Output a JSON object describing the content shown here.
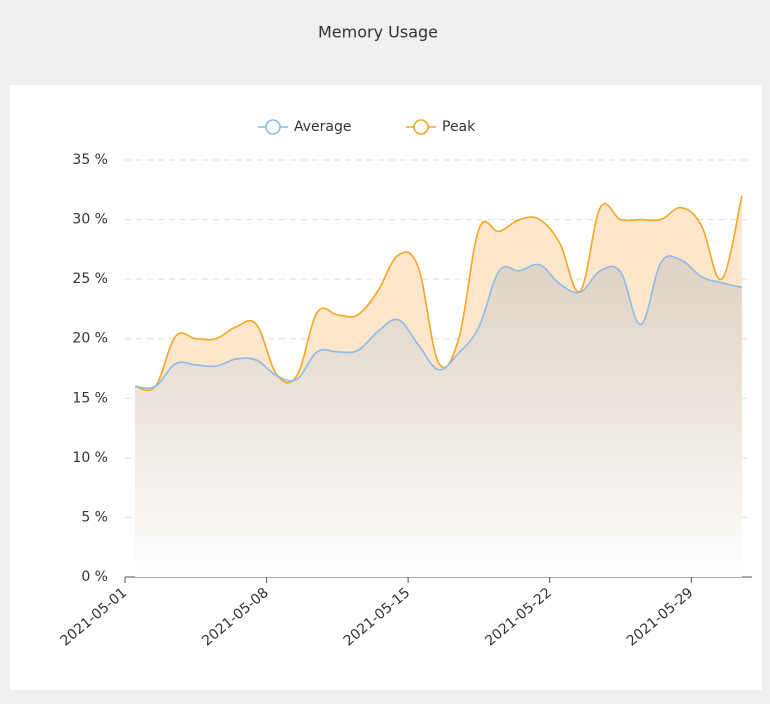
{
  "chart_data": {
    "type": "line",
    "title": "Memory Usage",
    "x": [
      "2021-05-01",
      "2021-05-02",
      "2021-05-03",
      "2021-05-04",
      "2021-05-05",
      "2021-05-06",
      "2021-05-07",
      "2021-05-08",
      "2021-05-09",
      "2021-05-10",
      "2021-05-11",
      "2021-05-12",
      "2021-05-13",
      "2021-05-14",
      "2021-05-15",
      "2021-05-16",
      "2021-05-17",
      "2021-05-18",
      "2021-05-19",
      "2021-05-20",
      "2021-05-21",
      "2021-05-22",
      "2021-05-23",
      "2021-05-24",
      "2021-05-25",
      "2021-05-26",
      "2021-05-27",
      "2021-05-28",
      "2021-05-29",
      "2021-05-30",
      "2021-05-31"
    ],
    "xticks": [
      "2021-05-01",
      "2021-05-08",
      "2021-05-15",
      "2021-05-22",
      "2021-05-29"
    ],
    "series": [
      {
        "name": "Average",
        "color": "#8ebae8",
        "values": [
          16,
          16,
          17.9,
          17.8,
          17.7,
          18.3,
          18.2,
          16.9,
          16.6,
          18.9,
          18.9,
          19,
          20.6,
          21.6,
          19.5,
          17.4,
          18.8,
          21,
          25.7,
          25.7,
          26.2,
          24.6,
          23.9,
          25.7,
          25.6,
          21.2,
          26.4,
          26.6,
          25.2,
          24.7,
          24.3
        ]
      },
      {
        "name": "Peak",
        "color": "#f5a623",
        "values": [
          16,
          16,
          20.2,
          20,
          20,
          21,
          21.2,
          17,
          16.9,
          22.2,
          22,
          22,
          24,
          27,
          26,
          18,
          20,
          29.2,
          29,
          30,
          30,
          28,
          24,
          31,
          30,
          30,
          30,
          31,
          29.5,
          25,
          32
        ]
      }
    ],
    "ylim": [
      0,
      35
    ],
    "yticks": [
      {
        "value": 0,
        "label": "0 %"
      },
      {
        "value": 5,
        "label": "5 %"
      },
      {
        "value": 10,
        "label": "10 %"
      },
      {
        "value": 15,
        "label": "15 %"
      },
      {
        "value": 20,
        "label": "20 %"
      },
      {
        "value": 25,
        "label": "25 %"
      },
      {
        "value": 30,
        "label": "30 %"
      },
      {
        "value": 35,
        "label": "35 %"
      }
    ],
    "grid": true
  }
}
